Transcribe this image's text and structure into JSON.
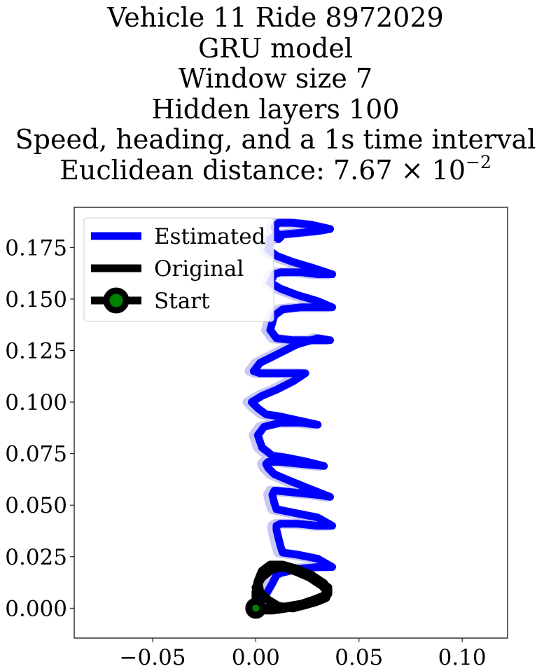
{
  "chart_data": {
    "type": "line",
    "title_lines": [
      "Vehicle 11 Ride 8972029",
      "GRU model",
      "Window size 7",
      "Hidden layers 100",
      "Speed, heading, and a 1s time interval"
    ],
    "title_metric": {
      "prefix": "Euclidean distance: ",
      "mantissa": "7.67",
      "times": "×",
      "base": "10",
      "exponent": "−2"
    },
    "xlabel": "",
    "ylabel": "",
    "xlim": [
      -0.088,
      0.122
    ],
    "ylim": [
      -0.0145,
      0.1945
    ],
    "xticks": [
      -0.05,
      0.0,
      0.05,
      0.1
    ],
    "xtick_labels": [
      "−0.05",
      "0.00",
      "0.05",
      "0.10"
    ],
    "yticks": [
      0.0,
      0.025,
      0.05,
      0.075,
      0.1,
      0.125,
      0.15,
      0.175
    ],
    "ytick_labels": [
      "0.000",
      "0.025",
      "0.050",
      "0.075",
      "0.100",
      "0.125",
      "0.150",
      "0.175"
    ],
    "grid": false,
    "legend": {
      "position": "top-left",
      "entries": [
        "Estimated",
        "Original",
        "Start"
      ]
    },
    "colors": {
      "estimated": "#0000ff",
      "estimated_faded": "#c8c8f5",
      "original": "#000000",
      "start_fill": "#008000",
      "start_edge": "#000000"
    },
    "series": [
      {
        "name": "Estimated",
        "x": [
          0.0,
          0.004,
          0.008,
          0.01,
          0.012,
          0.02,
          0.03,
          0.037,
          0.03,
          0.02,
          0.013,
          0.012,
          0.011,
          0.01,
          0.01,
          0.012,
          0.02,
          0.03,
          0.037,
          0.03,
          0.02,
          0.01,
          0.009,
          0.008,
          0.009,
          0.01,
          0.02,
          0.03,
          0.036,
          0.026,
          0.016,
          0.009,
          0.006,
          0.005,
          0.006,
          0.012,
          0.022,
          0.033,
          0.025,
          0.015,
          0.008,
          0.003,
          0.001,
          0.004,
          0.012,
          0.022,
          0.03,
          0.021,
          0.012,
          0.005,
          0.001,
          -0.002,
          0.003,
          0.01,
          0.018,
          0.024,
          0.016,
          0.008,
          0.002,
          -0.001,
          0.002,
          0.01,
          0.02,
          0.03,
          0.036,
          0.028,
          0.018,
          0.01,
          0.007,
          0.009,
          0.013,
          0.022,
          0.03,
          0.037,
          0.03,
          0.02,
          0.012,
          0.007,
          0.009,
          0.012,
          0.022,
          0.03,
          0.037,
          0.028,
          0.018,
          0.01,
          0.006,
          0.007,
          0.01,
          0.02,
          0.03,
          0.036,
          0.027,
          0.018,
          0.011,
          0.009,
          0.01,
          0.012,
          0.011
        ],
        "y": [
          0.0,
          0.005,
          0.012,
          0.016,
          0.017,
          0.019,
          0.02,
          0.02,
          0.024,
          0.026,
          0.027,
          0.03,
          0.034,
          0.038,
          0.04,
          0.041,
          0.041,
          0.04,
          0.04,
          0.044,
          0.046,
          0.048,
          0.051,
          0.055,
          0.057,
          0.057,
          0.056,
          0.055,
          0.054,
          0.058,
          0.062,
          0.065,
          0.068,
          0.07,
          0.071,
          0.071,
          0.07,
          0.069,
          0.071,
          0.073,
          0.074,
          0.078,
          0.084,
          0.088,
          0.09,
          0.09,
          0.089,
          0.091,
          0.093,
          0.094,
          0.097,
          0.1,
          0.103,
          0.106,
          0.11,
          0.114,
          0.114,
          0.114,
          0.114,
          0.115,
          0.119,
          0.123,
          0.128,
          0.131,
          0.13,
          0.13,
          0.13,
          0.131,
          0.135,
          0.142,
          0.145,
          0.146,
          0.146,
          0.146,
          0.149,
          0.152,
          0.155,
          0.158,
          0.162,
          0.163,
          0.163,
          0.162,
          0.162,
          0.165,
          0.168,
          0.171,
          0.174,
          0.179,
          0.181,
          0.182,
          0.183,
          0.184,
          0.186,
          0.187,
          0.187,
          0.185,
          0.182,
          0.18,
          0.179
        ]
      },
      {
        "name": "Original",
        "x": [
          0.0,
          0.002,
          0.008,
          0.015,
          0.022,
          0.029,
          0.034,
          0.035,
          0.032,
          0.026,
          0.019,
          0.013,
          0.008,
          0.004,
          0.001,
          0.0,
          0.0,
          0.001,
          0.005,
          0.01,
          0.016,
          0.022,
          0.028,
          0.033,
          0.035,
          0.033,
          0.027,
          0.02,
          0.013,
          0.007,
          0.003,
          0.001,
          0.002,
          0.006,
          0.011,
          0.018,
          0.025,
          0.031,
          0.035,
          0.035,
          0.029,
          0.021,
          0.014,
          0.008,
          0.003,
          0.0
        ],
        "y": [
          0.0,
          -0.001,
          -0.001,
          0.0,
          0.001,
          0.003,
          0.005,
          0.008,
          0.011,
          0.015,
          0.018,
          0.02,
          0.02,
          0.018,
          0.013,
          0.008,
          0.004,
          0.001,
          0.0,
          0.0,
          0.001,
          0.002,
          0.004,
          0.006,
          0.009,
          0.012,
          0.016,
          0.019,
          0.021,
          0.021,
          0.018,
          0.013,
          0.008,
          0.004,
          0.001,
          0.0,
          0.002,
          0.004,
          0.007,
          0.01,
          0.014,
          0.018,
          0.02,
          0.019,
          0.015,
          0.01
        ]
      },
      {
        "name": "Start",
        "x": [
          0.0
        ],
        "y": [
          0.0
        ]
      }
    ]
  }
}
